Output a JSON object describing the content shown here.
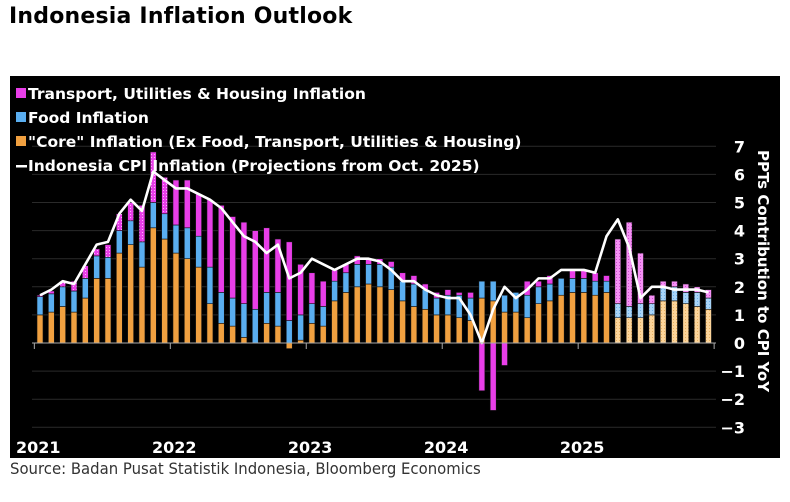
{
  "title": "Indonesia Inflation Outlook",
  "source": "Source: Badan Pusat Statistik Indonesia, Bloomberg Economics",
  "colors": {
    "transport": "#e83ee8",
    "food": "#5aaef0",
    "core": "#f0a040",
    "cpi_line": "#ffffff",
    "background": "#000000",
    "grid": "#2a2a2a"
  },
  "chart_data": {
    "type": "bar",
    "stacked": true,
    "title": "Indonesia Inflation Outlook",
    "ylabel": "PPTs Contribution to CPI YoY",
    "ylim": [
      -3,
      7
    ],
    "yticks": [
      7,
      6,
      5,
      4,
      3,
      2,
      1,
      0,
      -1,
      -2,
      -3
    ],
    "xtick_labels": [
      "2021",
      "2022",
      "2023",
      "2024",
      "2025"
    ],
    "grid": true,
    "legend_position": "top-left",
    "projection_start": "Oct. 2025",
    "legend": [
      {
        "key": "transport",
        "label": "Transport, Utilities & Housing Inflation",
        "kind": "box"
      },
      {
        "key": "food",
        "label": "Food Inflation",
        "kind": "box"
      },
      {
        "key": "core",
        "label": "\"Core\" Inflation (Ex Food, Transport, Utilities & Housing)",
        "kind": "box"
      },
      {
        "key": "cpi",
        "label": "Indonesia CPI Inflation (Projections from Oct. 2025)",
        "kind": "line"
      }
    ],
    "x": [
      "2021-01",
      "2021-02",
      "2021-03",
      "2021-04",
      "2021-05",
      "2021-06",
      "2021-07",
      "2021-08",
      "2021-09",
      "2021-10",
      "2021-11",
      "2021-12",
      "2022-01",
      "2022-02",
      "2022-03",
      "2022-04",
      "2022-05",
      "2022-06",
      "2022-07",
      "2022-08",
      "2022-09",
      "2022-10",
      "2022-11",
      "2022-12",
      "2023-01",
      "2023-02",
      "2023-03",
      "2023-04",
      "2023-05",
      "2023-06",
      "2023-07",
      "2023-08",
      "2023-09",
      "2023-10",
      "2023-11",
      "2023-12",
      "2024-01",
      "2024-02",
      "2024-03",
      "2024-04",
      "2024-05",
      "2024-06",
      "2024-07",
      "2024-08",
      "2024-09",
      "2024-10",
      "2024-11",
      "2024-12",
      "2025-01",
      "2025-02",
      "2025-03",
      "2025-04",
      "2025-05",
      "2025-06",
      "2025-07",
      "2025-08",
      "2025-09",
      "2025-10",
      "2025-11",
      "2025-12"
    ],
    "series": [
      {
        "name": "\"Core\" Inflation",
        "key": "core",
        "values": [
          1.0,
          1.1,
          1.3,
          1.1,
          1.6,
          2.3,
          2.3,
          3.2,
          3.5,
          2.7,
          4.1,
          3.7,
          3.2,
          3.0,
          2.7,
          1.4,
          0.7,
          0.6,
          0.2,
          0.0,
          0.7,
          0.6,
          -0.2,
          0.1,
          0.7,
          0.6,
          1.5,
          1.8,
          2.0,
          2.1,
          2.0,
          1.9,
          1.5,
          1.3,
          1.2,
          1.0,
          1.0,
          0.9,
          0.8,
          1.6,
          1.5,
          1.1,
          1.1,
          0.9,
          1.4,
          1.5,
          1.7,
          1.8,
          1.8,
          1.7,
          1.8,
          0.9,
          0.9,
          0.9,
          1.0,
          1.5,
          1.5,
          1.4,
          1.3,
          1.2
        ]
      },
      {
        "name": "Food Inflation",
        "key": "food",
        "values": [
          0.65,
          0.65,
          0.7,
          0.75,
          0.7,
          0.8,
          0.75,
          0.8,
          0.85,
          0.9,
          0.9,
          0.9,
          1.0,
          1.1,
          1.1,
          1.3,
          1.1,
          1.0,
          1.2,
          1.2,
          1.1,
          1.2,
          0.8,
          0.9,
          0.7,
          0.7,
          0.7,
          0.7,
          0.8,
          0.7,
          0.8,
          0.8,
          0.7,
          0.8,
          0.7,
          0.6,
          0.7,
          0.8,
          0.8,
          0.6,
          0.7,
          0.6,
          0.7,
          0.8,
          0.6,
          0.6,
          0.6,
          0.5,
          0.5,
          0.5,
          0.4,
          0.5,
          0.4,
          0.5,
          0.4,
          0.5,
          0.5,
          0.4,
          0.5,
          0.4
        ]
      },
      {
        "name": "Transport, Utilities & Housing Inflation",
        "key": "transport",
        "values": [
          0.05,
          0.1,
          0.2,
          0.35,
          0.45,
          0.25,
          0.45,
          0.6,
          0.65,
          1.3,
          1.8,
          1.3,
          1.6,
          1.7,
          1.5,
          2.4,
          3.1,
          2.9,
          2.9,
          2.8,
          2.3,
          1.9,
          2.8,
          1.8,
          1.1,
          0.9,
          0.4,
          0.3,
          0.3,
          0.2,
          0.2,
          0.2,
          0.3,
          0.3,
          0.2,
          0.2,
          0.2,
          0.1,
          0.2,
          -1.7,
          -2.4,
          -0.8,
          0.0,
          0.5,
          0.2,
          0.3,
          0.0,
          0.3,
          0.3,
          0.3,
          0.2,
          2.3,
          3.0,
          1.8,
          0.3,
          0.2,
          0.2,
          0.3,
          0.2,
          0.3
        ]
      },
      {
        "name": "Indonesia CPI Inflation",
        "key": "cpi",
        "type": "line",
        "values": [
          1.7,
          1.9,
          2.2,
          2.1,
          2.8,
          3.5,
          3.6,
          4.6,
          5.1,
          4.7,
          6.1,
          5.8,
          5.5,
          5.5,
          5.3,
          5.1,
          4.8,
          4.3,
          3.8,
          3.6,
          3.2,
          3.5,
          2.3,
          2.5,
          3.0,
          2.8,
          2.6,
          2.8,
          3.0,
          3.0,
          2.9,
          2.6,
          2.2,
          2.2,
          1.9,
          1.7,
          1.6,
          1.6,
          1.0,
          0.0,
          1.2,
          2.0,
          1.6,
          1.9,
          2.3,
          2.3,
          2.6,
          2.6,
          2.6,
          2.5,
          3.8,
          4.4,
          3.4,
          1.6,
          2.0,
          2.0,
          1.9,
          1.9,
          1.9,
          1.8
        ]
      }
    ]
  }
}
